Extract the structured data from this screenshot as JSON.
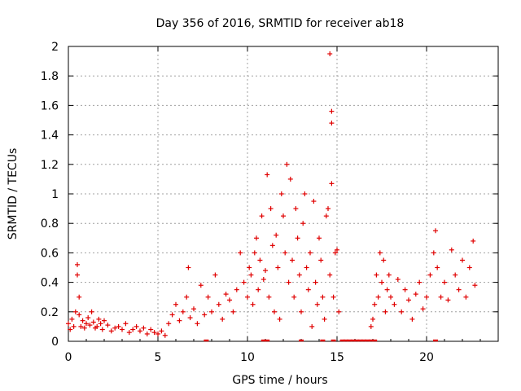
{
  "chart_data": {
    "type": "scatter",
    "title": "Day 356 of 2016, SRMTID for receiver ab18",
    "xlabel": "GPS time / hours",
    "ylabel": "SRMTID / TECUs",
    "xlim": [
      0,
      24
    ],
    "ylim": [
      0,
      2
    ],
    "x_ticks": [
      0,
      5,
      10,
      15,
      20
    ],
    "x_tick_labels": [
      "0",
      "5",
      "10",
      "15",
      "20"
    ],
    "y_ticks": [
      0,
      0.2,
      0.4,
      0.6,
      0.8,
      1,
      1.2,
      1.4,
      1.6,
      1.8,
      2
    ],
    "y_tick_labels": [
      "0",
      "0.2",
      "0.4",
      "0.6",
      "0.8",
      "1",
      "1.2",
      "1.4",
      "1.6",
      "1.8",
      "2"
    ],
    "grid": true,
    "marker": "+",
    "color": "#e00000",
    "series": [
      {
        "name": "SRMTID",
        "x": [
          0.0,
          0.1,
          0.2,
          0.3,
          0.4,
          0.5,
          0.5,
          0.6,
          0.6,
          0.7,
          0.8,
          0.9,
          1.0,
          1.1,
          1.2,
          1.3,
          1.4,
          1.5,
          1.6,
          1.7,
          1.8,
          1.9,
          2.0,
          2.2,
          2.4,
          2.6,
          2.8,
          3.0,
          3.2,
          3.4,
          3.6,
          3.8,
          4.0,
          4.2,
          4.4,
          4.6,
          4.8,
          5.0,
          5.2,
          5.4,
          5.6,
          5.8,
          6.0,
          6.2,
          6.4,
          6.6,
          6.7,
          6.8,
          7.0,
          7.2,
          7.4,
          7.6,
          7.8,
          8.0,
          8.2,
          8.4,
          8.6,
          8.8,
          9.0,
          9.2,
          9.4,
          9.6,
          9.8,
          10.0,
          10.1,
          10.2,
          10.3,
          10.4,
          10.5,
          10.6,
          10.7,
          10.8,
          10.9,
          11.0,
          11.1,
          11.2,
          11.3,
          11.4,
          11.5,
          11.6,
          11.7,
          11.8,
          11.9,
          12.0,
          12.1,
          12.2,
          12.3,
          12.4,
          12.5,
          12.6,
          12.7,
          12.8,
          12.9,
          13.0,
          13.1,
          13.2,
          13.3,
          13.4,
          13.5,
          13.6,
          13.7,
          13.8,
          13.9,
          14.0,
          14.1,
          14.2,
          14.3,
          14.4,
          14.5,
          14.6,
          14.6,
          14.7,
          14.7,
          14.7,
          14.8,
          14.9,
          15.0,
          15.1,
          16.9,
          17.0,
          17.1,
          17.2,
          17.3,
          17.4,
          17.5,
          17.6,
          17.7,
          17.8,
          17.9,
          18.0,
          18.2,
          18.4,
          18.6,
          18.8,
          19.0,
          19.2,
          19.4,
          19.6,
          19.8,
          20.0,
          20.2,
          20.4,
          20.5,
          20.6,
          20.8,
          21.0,
          21.2,
          21.4,
          21.6,
          21.8,
          22.0,
          22.2,
          22.4,
          22.6,
          22.7
        ],
        "y": [
          0.12,
          0.08,
          0.15,
          0.1,
          0.2,
          0.52,
          0.45,
          0.3,
          0.18,
          0.1,
          0.14,
          0.09,
          0.12,
          0.16,
          0.11,
          0.2,
          0.13,
          0.09,
          0.1,
          0.15,
          0.12,
          0.08,
          0.14,
          0.11,
          0.07,
          0.09,
          0.1,
          0.08,
          0.12,
          0.06,
          0.08,
          0.1,
          0.07,
          0.09,
          0.05,
          0.08,
          0.06,
          0.05,
          0.07,
          0.04,
          0.12,
          0.18,
          0.25,
          0.14,
          0.2,
          0.3,
          0.5,
          0.16,
          0.22,
          0.12,
          0.38,
          0.18,
          0.3,
          0.2,
          0.45,
          0.25,
          0.15,
          0.32,
          0.28,
          0.2,
          0.35,
          0.6,
          0.4,
          0.3,
          0.5,
          0.45,
          0.25,
          0.6,
          0.7,
          0.35,
          0.55,
          0.85,
          0.42,
          0.48,
          1.13,
          0.3,
          0.9,
          0.65,
          0.2,
          0.72,
          0.5,
          0.15,
          1.0,
          0.85,
          0.6,
          1.2,
          0.4,
          1.1,
          0.55,
          0.3,
          0.9,
          0.7,
          0.45,
          0.2,
          0.8,
          1.0,
          0.5,
          0.35,
          0.6,
          0.1,
          0.95,
          0.4,
          0.25,
          0.7,
          0.55,
          0.3,
          0.15,
          0.85,
          0.9,
          0.45,
          1.95,
          1.56,
          1.48,
          1.07,
          0.3,
          0.6,
          0.62,
          0.2,
          0.1,
          0.15,
          0.25,
          0.45,
          0.3,
          0.6,
          0.4,
          0.55,
          0.2,
          0.35,
          0.45,
          0.3,
          0.25,
          0.42,
          0.2,
          0.35,
          0.28,
          0.15,
          0.32,
          0.4,
          0.22,
          0.3,
          0.45,
          0.6,
          0.75,
          0.5,
          0.3,
          0.4,
          0.28,
          0.62,
          0.45,
          0.35,
          0.55,
          0.3,
          0.5,
          0.68,
          0.38
        ],
        "zero_x": [
          7.7,
          10.9,
          11.1,
          13.0,
          14.2,
          14.8,
          15.3,
          15.5,
          15.7,
          15.9,
          16.1,
          16.3,
          16.5,
          16.7,
          16.9,
          17.1,
          20.5
        ]
      }
    ]
  }
}
